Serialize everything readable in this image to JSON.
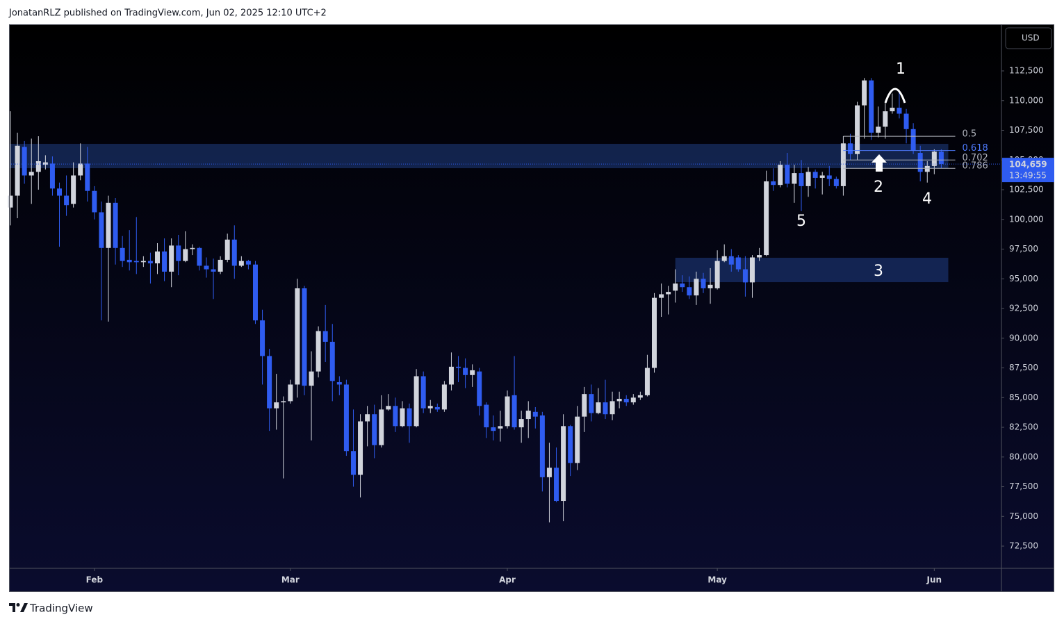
{
  "header": {
    "text": "JonatanRLZ published on TradingView.com, Jun 02, 2025 12:10 UTC+2"
  },
  "footer": {
    "brand": "TradingView"
  },
  "chart_data": {
    "type": "candlestick",
    "currency": "USD",
    "up_color": "#d1d4dc",
    "down_color": "#2f5cf0",
    "grid": false,
    "xlim": [
      -0.2,
      141.5
    ],
    "ylim": [
      70630,
      116420
    ],
    "xticks": [
      {
        "value": 12,
        "label": "Feb"
      },
      {
        "value": 40,
        "label": "Mar"
      },
      {
        "value": 71,
        "label": "Apr"
      },
      {
        "value": 101,
        "label": "May"
      },
      {
        "value": 132,
        "label": "Jun"
      }
    ],
    "yticks": [
      {
        "value": 72500,
        "label": "72,500"
      },
      {
        "value": 75000,
        "label": "75,000"
      },
      {
        "value": 77500,
        "label": "77,500"
      },
      {
        "value": 80000,
        "label": "80,000"
      },
      {
        "value": 82500,
        "label": "82,500"
      },
      {
        "value": 85000,
        "label": "85,000"
      },
      {
        "value": 87500,
        "label": "87,500"
      },
      {
        "value": 90000,
        "label": "90,000"
      },
      {
        "value": 92500,
        "label": "92,500"
      },
      {
        "value": 95000,
        "label": "95,000"
      },
      {
        "value": 97500,
        "label": "97,500"
      },
      {
        "value": 100000,
        "label": "100,000"
      },
      {
        "value": 102500,
        "label": "102,500"
      },
      {
        "value": 105000,
        "label": "105,000"
      },
      {
        "value": 107500,
        "label": "107,500"
      },
      {
        "value": 110000,
        "label": "110,000"
      },
      {
        "value": 112500,
        "label": "112,500"
      }
    ],
    "open": [
      101000,
      102000,
      106100,
      103700,
      104000,
      104600,
      104700,
      102600,
      102000,
      101300,
      103700,
      104700,
      102400,
      100600,
      97600,
      101400,
      97600,
      96600,
      96500,
      96400,
      96500,
      96300,
      97300,
      95600,
      97800,
      96500,
      97500,
      97600,
      96100,
      95800,
      95600,
      96600,
      98300,
      96100,
      96500,
      96200,
      91500,
      88500,
      84100,
      84600,
      84700,
      86100,
      94200,
      86000,
      87200,
      90600,
      89700,
      86300,
      86100,
      80500,
      78500,
      83000,
      83600,
      81000,
      84000,
      84300,
      82600,
      84100,
      82600,
      86800,
      84100,
      84200,
      84000,
      86100,
      87600,
      87500,
      86900,
      87200,
      84400,
      82500,
      82400,
      82600,
      85200,
      82500,
      83200,
      83800,
      83500,
      78300,
      79100,
      76300,
      82600,
      79500,
      83400,
      85300,
      83700,
      84600,
      83600,
      84700,
      84900,
      84600,
      85000,
      85200,
      87500,
      93400,
      93700,
      94000,
      94600,
      94300,
      93600,
      95000,
      94200,
      94200,
      96500,
      96900,
      96800,
      95800,
      94700,
      96800,
      97000,
      103200,
      102900,
      104600,
      103000,
      103900,
      102800,
      104000,
      103500,
      103700,
      103400,
      102800,
      106400,
      105500,
      109600,
      111700,
      107300,
      107800,
      109100,
      109400,
      108900,
      107600,
      105600,
      104000,
      104500,
      105700
    ],
    "high": [
      109100,
      107300,
      106600,
      106800,
      107000,
      105400,
      105300,
      103100,
      103700,
      104800,
      106400,
      106100,
      102800,
      101500,
      102000,
      101800,
      98600,
      99100,
      100200,
      96900,
      97200,
      98000,
      98400,
      98400,
      98700,
      99000,
      97900,
      97700,
      96800,
      96700,
      96900,
      98800,
      99500,
      96900,
      96600,
      96500,
      92400,
      89100,
      87000,
      85100,
      86500,
      95000,
      94400,
      88900,
      91000,
      92800,
      91200,
      86800,
      86500,
      84000,
      83600,
      84300,
      84400,
      85200,
      85300,
      85000,
      84700,
      84500,
      87400,
      87200,
      84800,
      84500,
      86400,
      88800,
      88500,
      88300,
      87800,
      87500,
      84600,
      83500,
      83900,
      85600,
      88500,
      83900,
      84700,
      84200,
      83800,
      81200,
      80800,
      83600,
      82700,
      84300,
      85900,
      86100,
      85800,
      86500,
      85500,
      85500,
      85200,
      85300,
      85500,
      88600,
      93800,
      94600,
      94400,
      95800,
      95300,
      95200,
      95600,
      95500,
      95900,
      97400,
      97900,
      97500,
      97000,
      96900,
      97000,
      97600,
      104100,
      104300,
      104900,
      105600,
      104600,
      105000,
      104400,
      104200,
      104000,
      104500,
      103600,
      107000,
      107200,
      109900,
      111900,
      111900,
      109500,
      109800,
      110600,
      110700,
      109300,
      108100,
      106200,
      104900,
      105900,
      105900
    ],
    "low": [
      99500,
      100100,
      103000,
      101300,
      102500,
      104200,
      102000,
      97700,
      100300,
      101000,
      103300,
      101500,
      100000,
      91500,
      91400,
      96200,
      96000,
      95700,
      95400,
      96000,
      94600,
      95400,
      94800,
      94300,
      95300,
      96400,
      97000,
      95700,
      95100,
      93300,
      95400,
      96400,
      95000,
      96000,
      95800,
      91200,
      86100,
      82200,
      82300,
      78200,
      84500,
      85000,
      85200,
      81400,
      86700,
      88000,
      84700,
      85200,
      80100,
      77500,
      76600,
      80900,
      79900,
      80800,
      83900,
      82100,
      82500,
      81200,
      82500,
      83700,
      83700,
      83800,
      83800,
      85600,
      86300,
      85800,
      85900,
      83500,
      81600,
      81400,
      81300,
      82400,
      82300,
      81200,
      81600,
      82400,
      77100,
      74500,
      76200,
      74600,
      78400,
      78900,
      82100,
      83000,
      83600,
      83200,
      83100,
      84100,
      84300,
      84400,
      84800,
      85100,
      87100,
      91800,
      92000,
      93000,
      93900,
      93300,
      92800,
      93800,
      92900,
      94100,
      96400,
      95600,
      95600,
      93500,
      93400,
      96500,
      96900,
      102400,
      102700,
      102700,
      101400,
      100700,
      101900,
      102600,
      102100,
      102800,
      102600,
      102000,
      105000,
      105000,
      106800,
      106700,
      106900,
      106800,
      108900,
      108500,
      106400,
      105500,
      103200,
      103100,
      103800,
      104300
    ],
    "close": [
      102000,
      106200,
      103700,
      104000,
      104900,
      104800,
      102600,
      102000,
      101200,
      103700,
      104700,
      102400,
      100600,
      97600,
      101400,
      97600,
      96500,
      96400,
      96400,
      96500,
      96300,
      97300,
      95600,
      97800,
      96500,
      97500,
      97600,
      96100,
      95800,
      95600,
      96600,
      98300,
      96100,
      96500,
      96200,
      91500,
      88500,
      84100,
      84600,
      84700,
      86100,
      94200,
      86000,
      87200,
      90600,
      89700,
      86400,
      86100,
      80500,
      78500,
      83000,
      83600,
      81000,
      84000,
      84300,
      82600,
      84100,
      82600,
      86800,
      84100,
      84300,
      84000,
      86100,
      87600,
      87500,
      86900,
      87300,
      84300,
      82500,
      82200,
      82600,
      85100,
      82500,
      83200,
      83900,
      83400,
      78300,
      79100,
      76300,
      82600,
      79500,
      83400,
      85300,
      83700,
      84600,
      83600,
      84700,
      84900,
      84600,
      85000,
      85200,
      87500,
      93400,
      93700,
      93900,
      94600,
      94300,
      93600,
      95000,
      94200,
      94500,
      96500,
      96900,
      96200,
      95800,
      94700,
      96800,
      97000,
      103200,
      102900,
      104600,
      103000,
      103900,
      102800,
      104000,
      103500,
      103700,
      103400,
      102800,
      106400,
      105500,
      109600,
      111700,
      107300,
      107800,
      109100,
      109400,
      108900,
      107600,
      105800,
      104000,
      104500,
      105700,
      104659
    ],
    "last_label": "104,659",
    "countdown": "13:49:55",
    "zones": [
      {
        "low": 104310,
        "high": 106360,
        "start": -0.2,
        "end": 134
      },
      {
        "low": 94720,
        "high": 96770,
        "start": 95,
        "end": 134
      }
    ],
    "fib": {
      "start": 119,
      "end": 135,
      "levels": [
        {
          "ratio": "0.5",
          "price": 107000,
          "color": "#b2b5be"
        },
        {
          "ratio": "0.618",
          "price": 105800,
          "color": "#4f7bff"
        },
        {
          "ratio": "0.702",
          "price": 105000,
          "color": "#b2b5be"
        },
        {
          "ratio": "0.786",
          "price": 104300,
          "color": "#b2b5be"
        }
      ]
    },
    "annotations": [
      "1",
      "2",
      "3",
      "4",
      "5"
    ]
  }
}
